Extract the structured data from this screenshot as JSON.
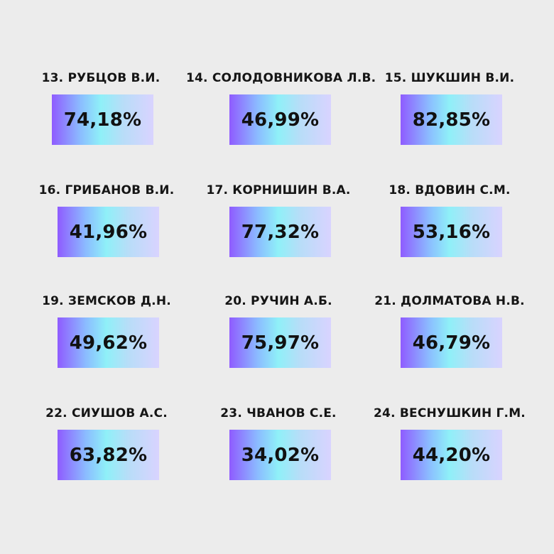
{
  "items": [
    {
      "label": "13. РУБЦОВ В.И.",
      "value": "74,18%"
    },
    {
      "label": "14. СОЛОДОВНИКОВА Л.В.",
      "value": "46,99%"
    },
    {
      "label": "15. ШУКШИН В.И.",
      "value": "82,85%"
    },
    {
      "label": "16. ГРИБАНОВ В.И.",
      "value": "41,96%"
    },
    {
      "label": "17. КОРНИШИН В.А.",
      "value": "77,32%"
    },
    {
      "label": "18. ВДОВИН С.М.",
      "value": "53,16%"
    },
    {
      "label": "19. ЗЕМСКОВ Д.Н.",
      "value": "49,62%"
    },
    {
      "label": "20. РУЧИН А.Б.",
      "value": "75,97%"
    },
    {
      "label": "21. ДОЛМАТОВА Н.В.",
      "value": "46,79%"
    },
    {
      "label": "22. СИУШОВ А.С.",
      "value": "63,82%"
    },
    {
      "label": "23. ЧВАНОВ С.Е.",
      "value": "34,02%"
    },
    {
      "label": "24. ВЕСНУШКИН Г.М.",
      "value": "44,20%"
    }
  ]
}
